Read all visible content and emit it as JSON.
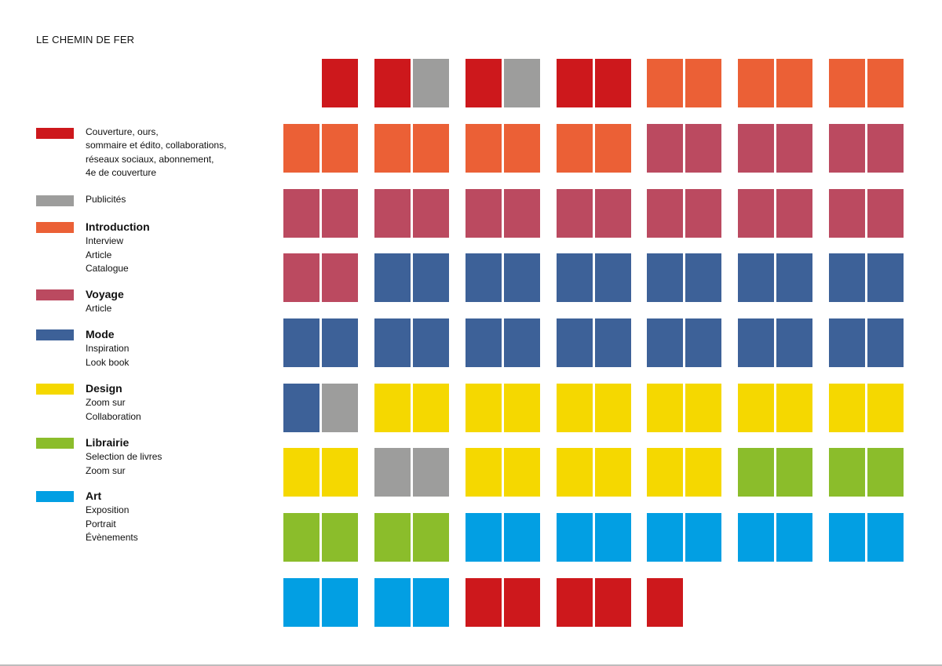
{
  "title": "LE CHEMIN DE FER",
  "colors": {
    "couverture": "#cd181c",
    "publicites": "#9d9d9c",
    "introduction": "#eb6036",
    "voyage": "#bb4a60",
    "mode": "#3d6198",
    "design": "#f5d800",
    "librairie": "#8bbd2b",
    "art": "#029fe3"
  },
  "legend": [
    {
      "key": "couverture",
      "label": "Couverture, ours,",
      "sub": [
        "sommaire et édito, collaborations,",
        "réseaux sociaux, abonnement,",
        "4e de couverture"
      ]
    },
    {
      "key": "publicites",
      "label": "Publicités",
      "sub": []
    },
    {
      "key": "introduction",
      "label": "Introduction",
      "sub": [
        "Interview",
        "Article",
        "Catalogue"
      ]
    },
    {
      "key": "voyage",
      "label": "Voyage",
      "sub": [
        "Article"
      ]
    },
    {
      "key": "mode",
      "label": "Mode",
      "sub": [
        "Inspiration",
        "Look book"
      ]
    },
    {
      "key": "design",
      "label": "Design",
      "sub": [
        "Zoom sur",
        "Collaboration"
      ]
    },
    {
      "key": "librairie",
      "label": "Librairie",
      "sub": [
        "Selection de livres",
        "Zoom sur"
      ]
    },
    {
      "key": "art",
      "label": "Art",
      "sub": [
        "Exposition",
        "Portrait",
        "Évènements"
      ]
    }
  ],
  "spreads": [
    [
      [
        null,
        "couverture"
      ],
      [
        "couverture",
        "publicites"
      ],
      [
        "couverture",
        "publicites"
      ],
      [
        "couverture",
        "couverture"
      ],
      [
        "introduction",
        "introduction"
      ],
      [
        "introduction",
        "introduction"
      ],
      [
        "introduction",
        "introduction"
      ]
    ],
    [
      [
        "introduction",
        "introduction"
      ],
      [
        "introduction",
        "introduction"
      ],
      [
        "introduction",
        "introduction"
      ],
      [
        "introduction",
        "introduction"
      ],
      [
        "voyage",
        "voyage"
      ],
      [
        "voyage",
        "voyage"
      ],
      [
        "voyage",
        "voyage"
      ]
    ],
    [
      [
        "voyage",
        "voyage"
      ],
      [
        "voyage",
        "voyage"
      ],
      [
        "voyage",
        "voyage"
      ],
      [
        "voyage",
        "voyage"
      ],
      [
        "voyage",
        "voyage"
      ],
      [
        "voyage",
        "voyage"
      ],
      [
        "voyage",
        "voyage"
      ]
    ],
    [
      [
        "voyage",
        "voyage"
      ],
      [
        "mode",
        "mode"
      ],
      [
        "mode",
        "mode"
      ],
      [
        "mode",
        "mode"
      ],
      [
        "mode",
        "mode"
      ],
      [
        "mode",
        "mode"
      ],
      [
        "mode",
        "mode"
      ]
    ],
    [
      [
        "mode",
        "mode"
      ],
      [
        "mode",
        "mode"
      ],
      [
        "mode",
        "mode"
      ],
      [
        "mode",
        "mode"
      ],
      [
        "mode",
        "mode"
      ],
      [
        "mode",
        "mode"
      ],
      [
        "mode",
        "mode"
      ]
    ],
    [
      [
        "mode",
        "publicites"
      ],
      [
        "design",
        "design"
      ],
      [
        "design",
        "design"
      ],
      [
        "design",
        "design"
      ],
      [
        "design",
        "design"
      ],
      [
        "design",
        "design"
      ],
      [
        "design",
        "design"
      ]
    ],
    [
      [
        "design",
        "design"
      ],
      [
        "publicites",
        "publicites"
      ],
      [
        "design",
        "design"
      ],
      [
        "design",
        "design"
      ],
      [
        "design",
        "design"
      ],
      [
        "librairie",
        "librairie"
      ],
      [
        "librairie",
        "librairie"
      ]
    ],
    [
      [
        "librairie",
        "librairie"
      ],
      [
        "librairie",
        "librairie"
      ],
      [
        "art",
        "art"
      ],
      [
        "art",
        "art"
      ],
      [
        "art",
        "art"
      ],
      [
        "art",
        "art"
      ],
      [
        "art",
        "art"
      ]
    ],
    [
      [
        "art",
        "art"
      ],
      [
        "art",
        "art"
      ],
      [
        "couverture",
        "couverture"
      ],
      [
        "couverture",
        "couverture"
      ],
      [
        "couverture",
        null
      ]
    ]
  ]
}
